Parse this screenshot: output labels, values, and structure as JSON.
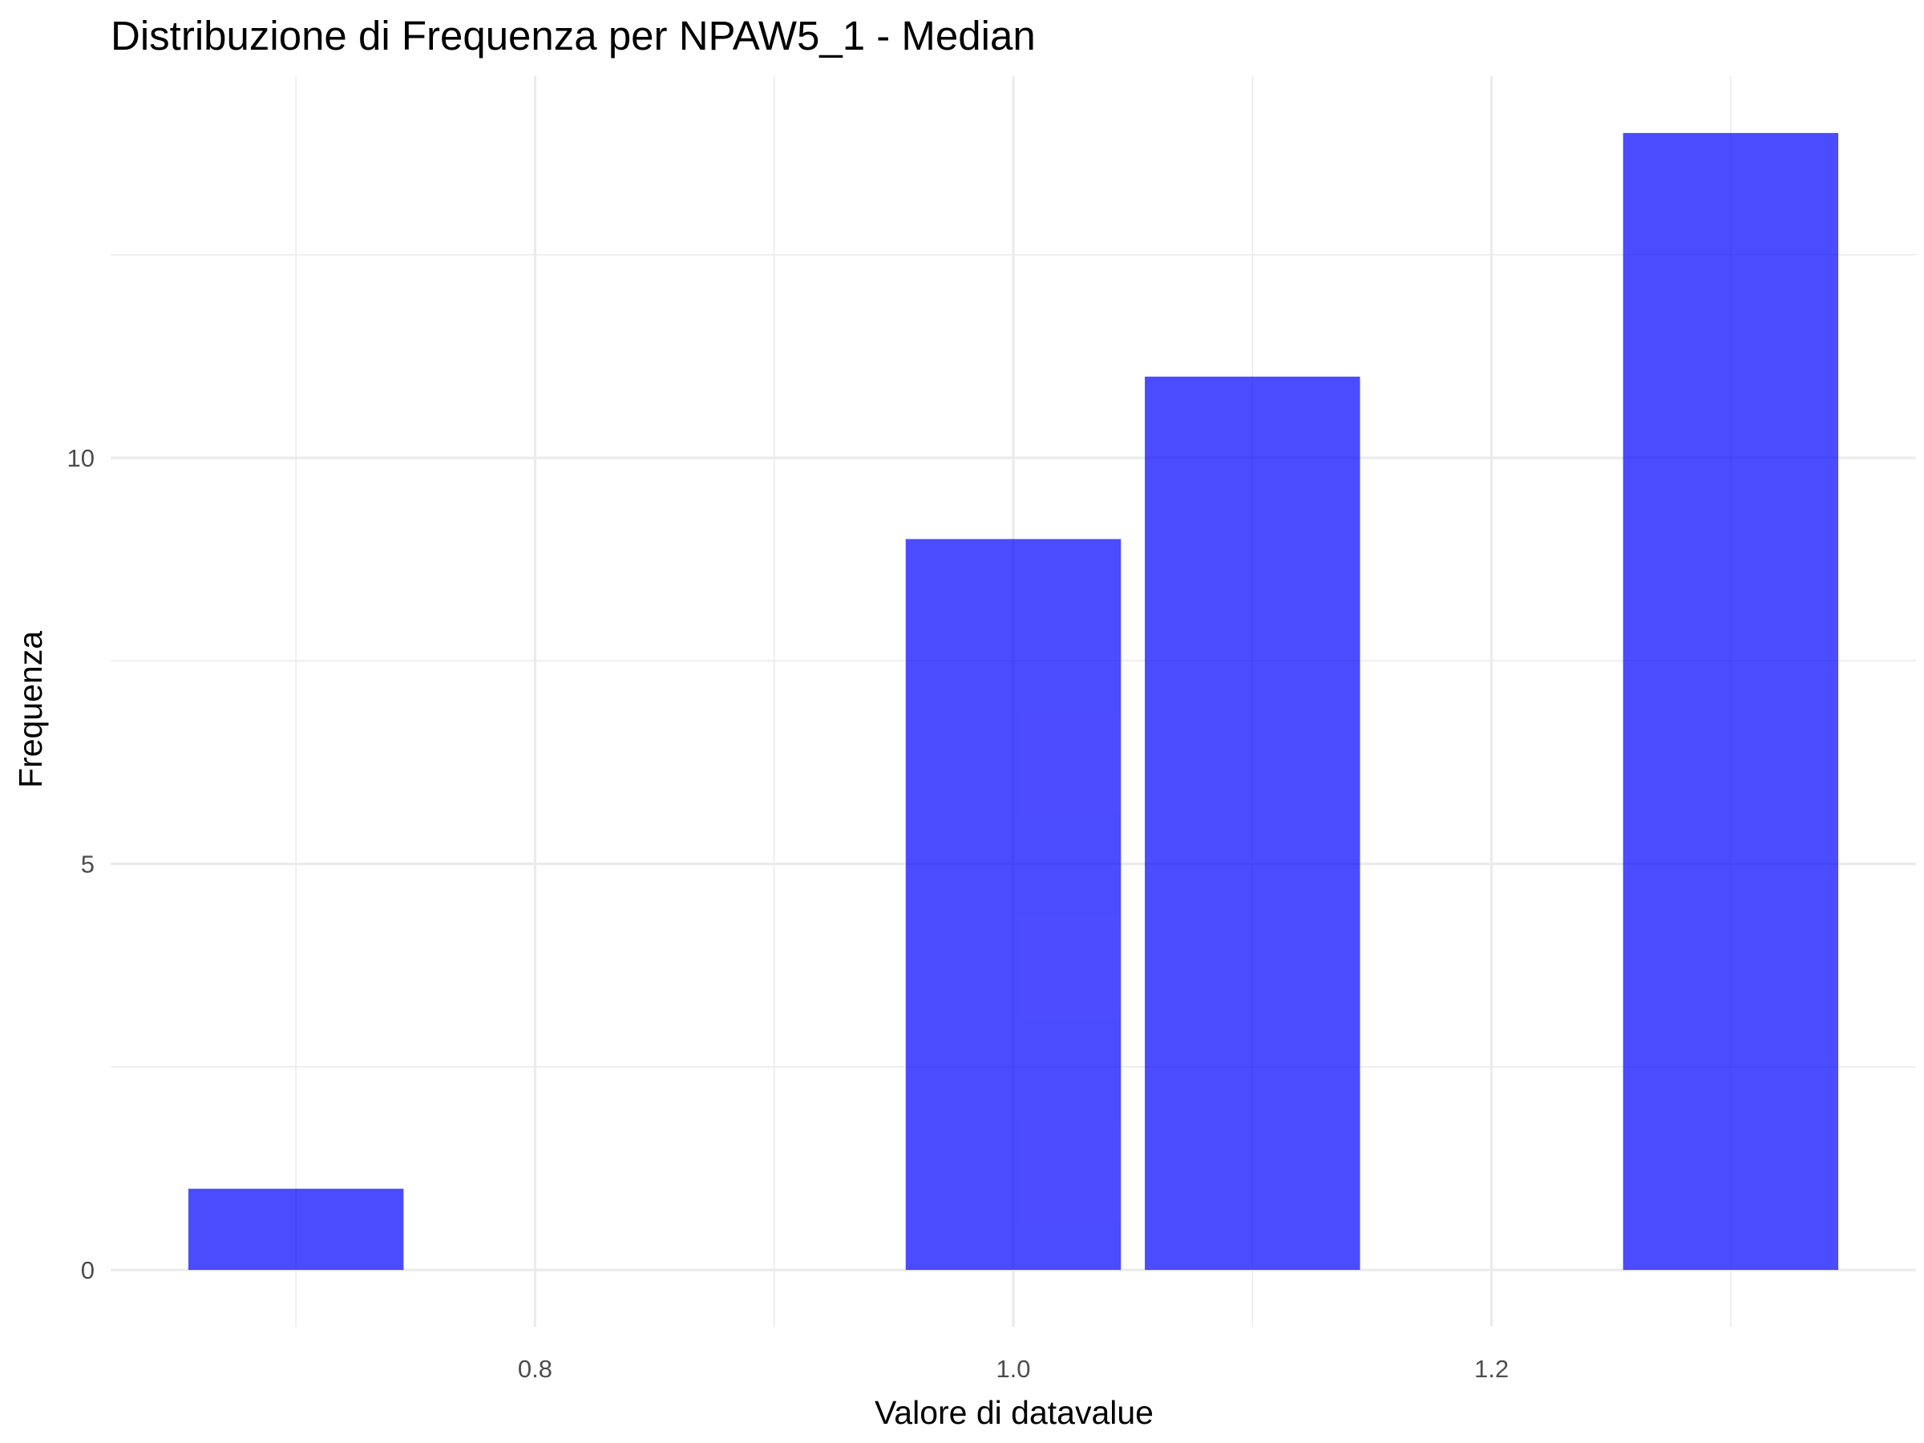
{
  "chart_data": {
    "type": "bar",
    "title": "Distribuzione di Frequenza per NPAW5_1 - Median",
    "xlabel": "Valore di datavalue",
    "ylabel": "Frequenza",
    "bins": [
      {
        "x_start": 0.655,
        "x_end": 0.745,
        "count": 1
      },
      {
        "x_start": 0.955,
        "x_end": 1.045,
        "count": 9
      },
      {
        "x_start": 1.055,
        "x_end": 1.145,
        "count": 11
      },
      {
        "x_start": 1.255,
        "x_end": 1.345,
        "count": 14
      }
    ],
    "x_ticks": [
      {
        "value": 0.8,
        "label": "0.8"
      },
      {
        "value": 1.0,
        "label": "1.0"
      },
      {
        "value": 1.2,
        "label": "1.2"
      }
    ],
    "y_ticks": [
      {
        "value": 0,
        "label": "0"
      },
      {
        "value": 5,
        "label": "5"
      },
      {
        "value": 10,
        "label": "10"
      }
    ],
    "x_minor_ticks": [
      0.7,
      0.9,
      1.1,
      1.3
    ],
    "y_minor_ticks": [
      2.5,
      7.5,
      12.5
    ],
    "xlim": [
      0.6225,
      1.3775
    ],
    "ylim": [
      -0.7,
      14.7
    ],
    "grid": true,
    "legend": "none",
    "colors": {
      "bar_fill": "#0000ff",
      "bar_opacity": 0.7,
      "grid": "#ebebeb",
      "background": "#ffffff"
    }
  }
}
